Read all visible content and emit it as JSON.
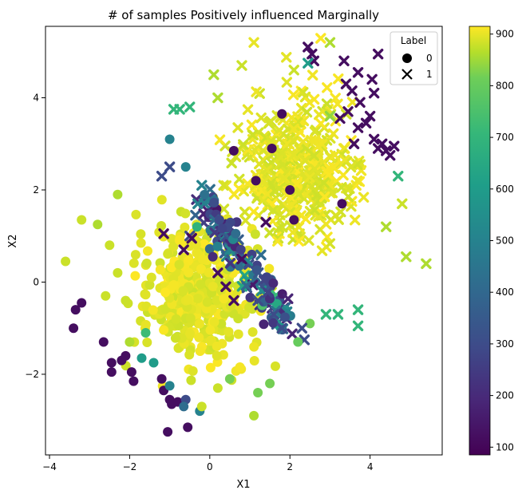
{
  "chart_data": {
    "type": "scatter",
    "title": "# of samples Positively influenced Marginally",
    "xlabel": "X1",
    "ylabel": "X2",
    "xlim": [
      -4.1,
      5.8
    ],
    "ylim": [
      -3.75,
      5.55
    ],
    "xticks": [
      -4,
      -2,
      0,
      2,
      4
    ],
    "yticks": [
      -2,
      0,
      2,
      4
    ],
    "grid": false,
    "colormap": "viridis",
    "colorbar": {
      "min": 85,
      "max": 915,
      "ticks": [
        100,
        200,
        300,
        400,
        500,
        600,
        700,
        800,
        900
      ]
    },
    "legend": {
      "title": "Label",
      "placement": "top-right",
      "entries": [
        {
          "label": "0",
          "marker": "circle"
        },
        {
          "label": "1",
          "marker": "x"
        }
      ]
    },
    "clusters": [
      {
        "label": "0",
        "center": [
          -0.3,
          -0.3
        ],
        "spread": [
          0.75,
          0.75
        ],
        "count": 420
      },
      {
        "label": "1",
        "center": [
          2.2,
          2.4
        ],
        "spread": [
          0.7,
          0.75
        ],
        "count": 420
      }
    ],
    "series": [
      {
        "label": "0",
        "marker": "circle",
        "points": [
          [
            -3.4,
            -1.0,
            120
          ],
          [
            -3.35,
            -0.6,
            120
          ],
          [
            -3.2,
            -0.45,
            120
          ],
          [
            -2.65,
            -1.3,
            120
          ],
          [
            -2.45,
            -1.75,
            120
          ],
          [
            -2.45,
            -1.95,
            120
          ],
          [
            -2.2,
            -1.7,
            120
          ],
          [
            -2.1,
            -1.6,
            120
          ],
          [
            -1.95,
            -1.95,
            120
          ],
          [
            -1.9,
            -2.15,
            120
          ],
          [
            -1.7,
            -1.65,
            600
          ],
          [
            -1.4,
            -1.75,
            600
          ],
          [
            -1.2,
            -2.1,
            120
          ],
          [
            -1.15,
            -2.35,
            120
          ],
          [
            -1.0,
            -2.55,
            120
          ],
          [
            -0.95,
            -2.65,
            120
          ],
          [
            -0.8,
            -2.6,
            120
          ],
          [
            -0.6,
            -2.55,
            300
          ],
          [
            -0.55,
            -3.15,
            120
          ],
          [
            -1.05,
            -3.25,
            120
          ],
          [
            -1.0,
            -2.25,
            500
          ],
          [
            -0.25,
            -2.8,
            500
          ],
          [
            -0.65,
            -2.7,
            420
          ],
          [
            2.0,
            2.0,
            120
          ],
          [
            1.55,
            2.9,
            120
          ],
          [
            1.8,
            3.65,
            120
          ],
          [
            3.3,
            1.7,
            120
          ],
          [
            2.1,
            1.35,
            120
          ],
          [
            1.15,
            2.2,
            120
          ],
          [
            0.6,
            2.85,
            120
          ],
          [
            -1.0,
            3.1,
            500
          ],
          [
            -0.6,
            2.5,
            500
          ],
          [
            -3.6,
            0.45,
            880
          ],
          [
            -3.2,
            1.35,
            880
          ],
          [
            -2.8,
            1.25,
            860
          ],
          [
            -2.5,
            0.8,
            880
          ],
          [
            -2.3,
            0.2,
            880
          ],
          [
            -2.1,
            -0.4,
            880
          ],
          [
            -2.6,
            -0.3,
            880
          ],
          [
            -2.0,
            -1.3,
            860
          ],
          [
            1.5,
            -2.2,
            820
          ],
          [
            1.2,
            -2.4,
            820
          ],
          [
            1.1,
            -2.9,
            860
          ],
          [
            0.5,
            -2.1,
            820
          ],
          [
            -0.2,
            -2.7,
            880
          ],
          [
            2.2,
            -1.3,
            800
          ],
          [
            2.5,
            -0.9,
            820
          ],
          [
            0.2,
            -2.3,
            880
          ],
          [
            -1.6,
            -1.1,
            720
          ],
          [
            -2.3,
            1.9,
            860
          ]
        ]
      },
      {
        "label": "1",
        "marker": "x",
        "points": [
          [
            2.45,
            5.1,
            120
          ],
          [
            2.55,
            4.95,
            120
          ],
          [
            2.6,
            4.8,
            120
          ],
          [
            3.35,
            4.8,
            120
          ],
          [
            3.7,
            4.55,
            120
          ],
          [
            4.05,
            4.4,
            120
          ],
          [
            4.2,
            4.95,
            120
          ],
          [
            3.4,
            4.3,
            120
          ],
          [
            3.55,
            4.15,
            120
          ],
          [
            3.75,
            3.9,
            120
          ],
          [
            3.9,
            3.45,
            120
          ],
          [
            3.7,
            3.35,
            120
          ],
          [
            3.6,
            3.0,
            120
          ],
          [
            3.45,
            3.7,
            120
          ],
          [
            3.25,
            3.55,
            120
          ],
          [
            4.1,
            3.1,
            120
          ],
          [
            4.3,
            3.0,
            120
          ],
          [
            4.4,
            2.85,
            120
          ],
          [
            4.5,
            2.75,
            120
          ],
          [
            4.2,
            2.9,
            120
          ],
          [
            2.45,
            4.75,
            600
          ],
          [
            4.0,
            3.6,
            120
          ],
          [
            4.1,
            4.1,
            120
          ],
          [
            4.6,
            2.95,
            120
          ],
          [
            1.4,
            1.3,
            120
          ],
          [
            0.8,
            0.5,
            120
          ],
          [
            0.4,
            -0.1,
            120
          ],
          [
            0.2,
            0.2,
            120
          ],
          [
            0.6,
            -0.4,
            120
          ],
          [
            1.2,
            -0.4,
            300
          ],
          [
            1.6,
            -0.7,
            300
          ],
          [
            1.8,
            -1.0,
            300
          ],
          [
            2.3,
            -1.0,
            300
          ],
          [
            2.9,
            -0.7,
            700
          ],
          [
            3.2,
            -0.7,
            700
          ],
          [
            3.7,
            -0.95,
            700
          ],
          [
            3.7,
            -0.6,
            700
          ],
          [
            4.7,
            2.3,
            700
          ],
          [
            -0.2,
            2.1,
            500
          ],
          [
            -0.3,
            1.7,
            500
          ],
          [
            -1.2,
            2.3,
            300
          ],
          [
            -1.0,
            2.5,
            300
          ],
          [
            -0.5,
            1.0,
            300
          ],
          [
            -1.15,
            1.05,
            120
          ],
          [
            -0.65,
            0.7,
            120
          ],
          [
            -0.45,
            0.95,
            120
          ],
          [
            -0.5,
            3.8,
            700
          ],
          [
            -0.9,
            3.75,
            700
          ],
          [
            -0.75,
            3.75,
            700
          ],
          [
            4.9,
            0.55,
            860
          ],
          [
            5.4,
            0.4,
            860
          ],
          [
            4.8,
            1.7,
            880
          ],
          [
            4.4,
            1.2,
            860
          ],
          [
            3.0,
            5.2,
            860
          ],
          [
            2.1,
            4.6,
            880
          ],
          [
            1.1,
            5.2,
            900
          ],
          [
            0.8,
            4.7,
            880
          ],
          [
            0.1,
            4.5,
            860
          ],
          [
            3.0,
            3.6,
            840
          ],
          [
            0.2,
            4.0,
            860
          ]
        ]
      }
    ]
  }
}
